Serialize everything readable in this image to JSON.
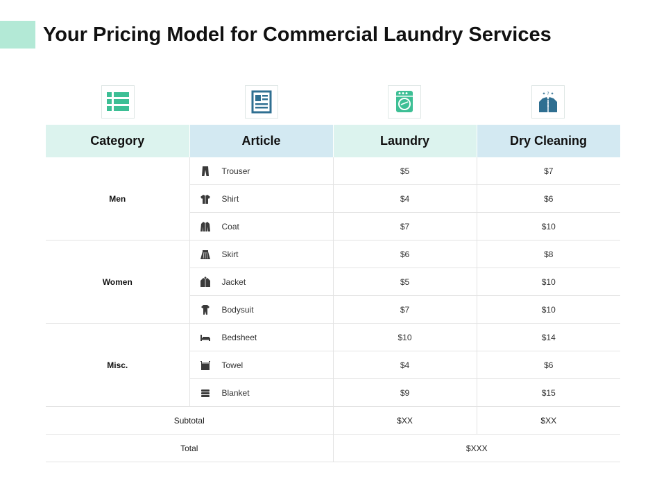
{
  "title": "Your Pricing Model for Commercial Laundry Services",
  "colors": {
    "accent": "#b3e9d6",
    "header_mint": "#dcf3ee",
    "header_blue": "#d3e9f2",
    "icon_green": "#3dbf95",
    "icon_blue": "#2f6f91"
  },
  "column_icons": [
    "list-icon",
    "document-icon",
    "washing-machine-icon",
    "dry-cleaning-icon"
  ],
  "table": {
    "headers": [
      "Category",
      "Article",
      "Laundry",
      "Dry Cleaning"
    ],
    "groups": [
      {
        "category": "Men",
        "items": [
          {
            "icon": "trouser-icon",
            "article": "Trouser",
            "laundry": "$5",
            "dry_cleaning": "$7"
          },
          {
            "icon": "shirt-icon",
            "article": "Shirt",
            "laundry": "$4",
            "dry_cleaning": "$6"
          },
          {
            "icon": "coat-icon",
            "article": "Coat",
            "laundry": "$7",
            "dry_cleaning": "$10"
          }
        ]
      },
      {
        "category": "Women",
        "items": [
          {
            "icon": "skirt-icon",
            "article": "Skirt",
            "laundry": "$6",
            "dry_cleaning": "$8"
          },
          {
            "icon": "jacket-icon",
            "article": "Jacket",
            "laundry": "$5",
            "dry_cleaning": "$10"
          },
          {
            "icon": "bodysuit-icon",
            "article": "Bodysuit",
            "laundry": "$7",
            "dry_cleaning": "$10"
          }
        ]
      },
      {
        "category": "Misc.",
        "items": [
          {
            "icon": "bed-icon",
            "article": "Bedsheet",
            "laundry": "$10",
            "dry_cleaning": "$14"
          },
          {
            "icon": "towel-icon",
            "article": "Towel",
            "laundry": "$4",
            "dry_cleaning": "$6"
          },
          {
            "icon": "blanket-icon",
            "article": "Blanket",
            "laundry": "$9",
            "dry_cleaning": "$15"
          }
        ]
      }
    ],
    "subtotal": {
      "label": "Subtotal",
      "laundry": "$XX",
      "dry_cleaning": "$XX"
    },
    "total": {
      "label": "Total",
      "value": "$XXX"
    }
  }
}
